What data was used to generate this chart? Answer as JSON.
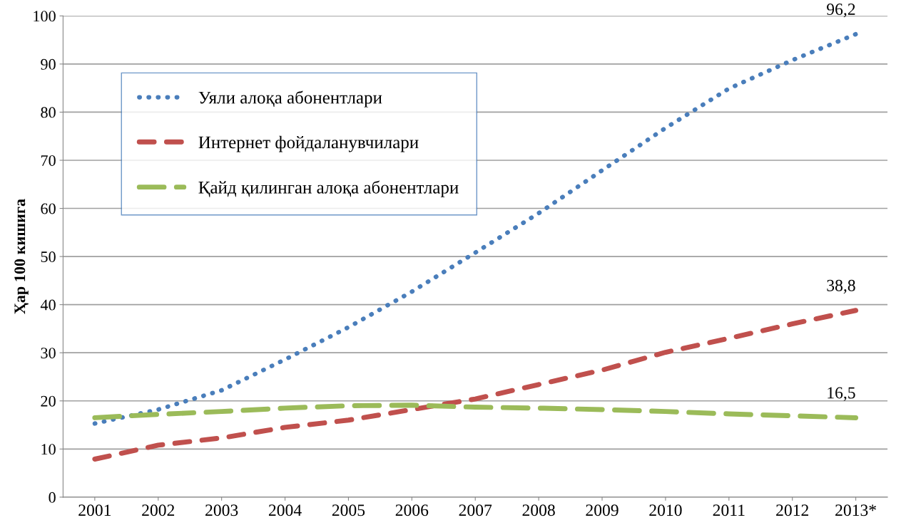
{
  "chart_data": {
    "type": "line",
    "ylabel": "Ҳар 100 кишига",
    "categories": [
      "2001",
      "2002",
      "2003",
      "2004",
      "2005",
      "2006",
      "2007",
      "2008",
      "2009",
      "2010",
      "2011",
      "2012",
      "2013*"
    ],
    "series": [
      {
        "name": "Уяли алоқа абонентлари",
        "color": "#4a7ebb",
        "line_style": "dotted",
        "values": [
          15.3,
          18.2,
          22.2,
          28.6,
          35.3,
          42.7,
          50.8,
          59,
          67.9,
          76.7,
          84.9,
          90.8,
          96.2
        ],
        "value_labels": [
          null,
          null,
          null,
          null,
          null,
          null,
          null,
          null,
          null,
          null,
          null,
          null,
          "96,2"
        ]
      },
      {
        "name": "Интернет фойдаланувчилари",
        "color": "#c0504d",
        "line_style": "dashed",
        "values": [
          7.9,
          10.8,
          12.3,
          14.5,
          16,
          18.2,
          20.4,
          23.4,
          26.4,
          30.1,
          33,
          36,
          38.8
        ],
        "value_labels": [
          null,
          null,
          null,
          null,
          null,
          null,
          null,
          null,
          null,
          null,
          null,
          null,
          "38,8"
        ]
      },
      {
        "name": "Қайд қилинган алоқа абонентлари",
        "color": "#9bbb59",
        "line_style": "longdash",
        "values": [
          16.5,
          17.2,
          17.8,
          18.5,
          19,
          19.1,
          18.7,
          18.5,
          18.2,
          17.8,
          17.3,
          16.9,
          16.5
        ],
        "value_labels": [
          null,
          null,
          null,
          null,
          null,
          null,
          null,
          null,
          null,
          null,
          null,
          null,
          "16,5"
        ]
      }
    ],
    "ylim": [
      0,
      100
    ],
    "yticks": [
      0,
      10,
      20,
      30,
      40,
      50,
      60,
      70,
      80,
      90,
      100
    ],
    "grid": "y",
    "legend": "top left",
    "marker": "none"
  }
}
